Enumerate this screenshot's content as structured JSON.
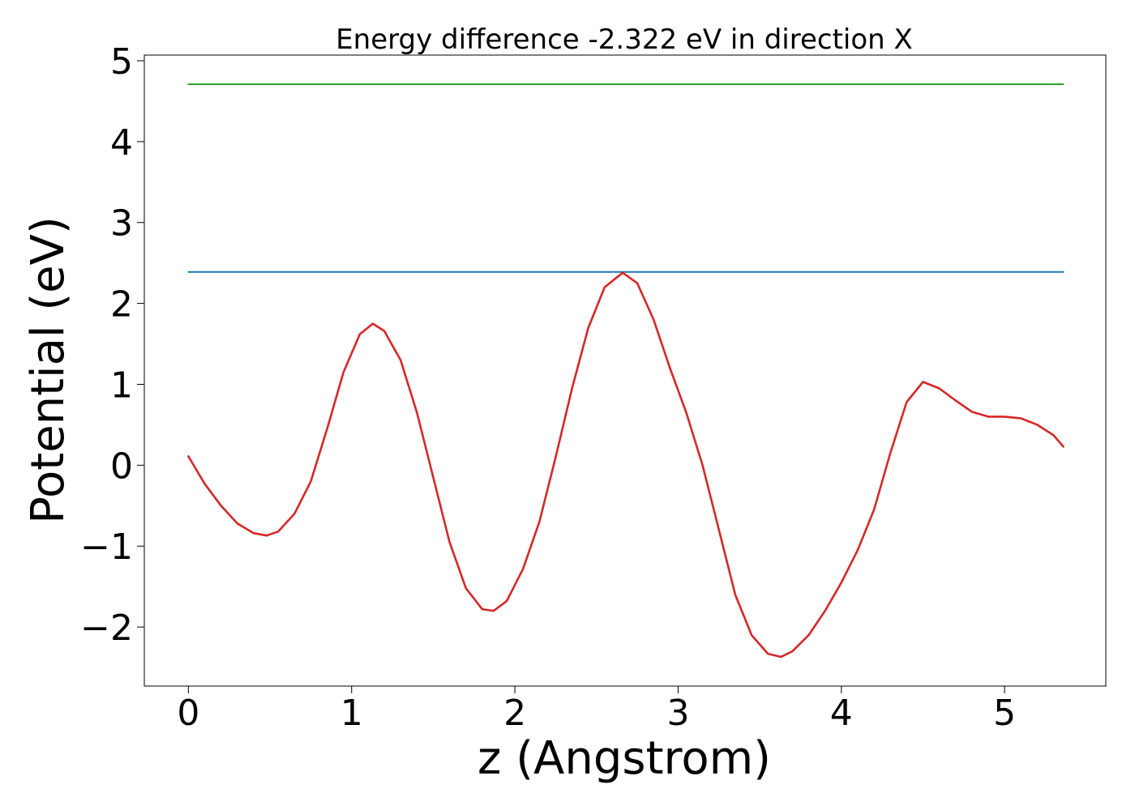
{
  "chart_data": {
    "type": "line",
    "title": "Energy difference -2.322 eV in direction X",
    "xlabel": "z (Angstrom)",
    "ylabel": "Potential (eV)",
    "xlim": [
      -0.27,
      5.62
    ],
    "ylim": [
      -2.73,
      5.07
    ],
    "xticks": [
      0,
      1,
      2,
      3,
      4,
      5
    ],
    "xtick_labels": [
      "0",
      "1",
      "2",
      "3",
      "4",
      "5"
    ],
    "yticks": [
      -2,
      -1,
      0,
      1,
      2,
      3,
      4,
      5
    ],
    "ytick_labels": [
      "−2",
      "−1",
      "0",
      "1",
      "2",
      "3",
      "4",
      "5"
    ],
    "grid": false,
    "series": [
      {
        "color": "#2ca02c",
        "x": [
          0,
          5.36
        ],
        "y": [
          4.71,
          4.71
        ]
      },
      {
        "color": "#1f77b4",
        "x": [
          0,
          5.36
        ],
        "y": [
          2.39,
          2.39
        ]
      },
      {
        "color": "#d62728",
        "x": [
          0,
          0.1,
          0.2,
          0.3,
          0.4,
          0.48,
          0.55,
          0.65,
          0.75,
          0.85,
          0.95,
          1.05,
          1.13,
          1.2,
          1.3,
          1.4,
          1.5,
          1.6,
          1.7,
          1.8,
          1.87,
          1.95,
          2.05,
          2.15,
          2.25,
          2.35,
          2.45,
          2.55,
          2.66,
          2.75,
          2.85,
          2.95,
          3.05,
          3.15,
          3.25,
          3.35,
          3.45,
          3.55,
          3.63,
          3.7,
          3.8,
          3.9,
          4.0,
          4.1,
          4.2,
          4.3,
          4.4,
          4.5,
          4.6,
          4.7,
          4.8,
          4.9,
          5.0,
          5.1,
          5.2,
          5.3,
          5.36
        ],
        "y": [
          0.11,
          -0.23,
          -0.5,
          -0.72,
          -0.84,
          -0.87,
          -0.82,
          -0.6,
          -0.2,
          0.45,
          1.15,
          1.62,
          1.75,
          1.66,
          1.3,
          0.65,
          -0.15,
          -0.95,
          -1.52,
          -1.78,
          -1.8,
          -1.68,
          -1.28,
          -0.7,
          0.1,
          0.95,
          1.7,
          2.2,
          2.38,
          2.25,
          1.8,
          1.2,
          0.65,
          0.0,
          -0.8,
          -1.6,
          -2.1,
          -2.33,
          -2.37,
          -2.3,
          -2.1,
          -1.8,
          -1.45,
          -1.05,
          -0.55,
          0.15,
          0.78,
          1.03,
          0.95,
          0.8,
          0.66,
          0.6,
          0.6,
          0.58,
          0.5,
          0.37,
          0.23
        ]
      }
    ]
  }
}
